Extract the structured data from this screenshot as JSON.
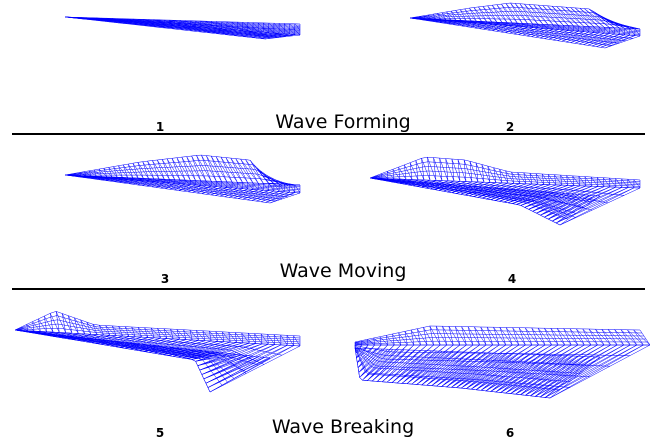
{
  "sections": [
    {
      "title": "Wave Forming",
      "panels": [
        "1",
        "2"
      ]
    },
    {
      "title": "Wave Moving",
      "panels": [
        "3",
        "4"
      ]
    },
    {
      "title": "Wave Breaking",
      "panels": [
        "5",
        "6"
      ]
    }
  ]
}
